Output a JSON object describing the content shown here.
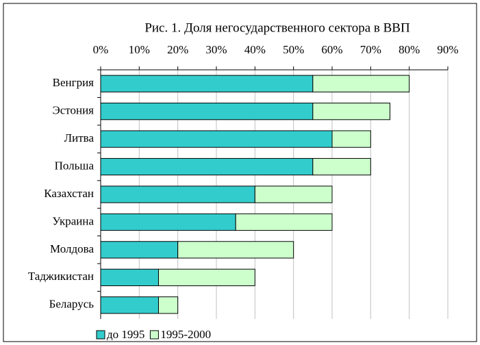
{
  "chart_data": {
    "type": "bar",
    "orientation": "horizontal",
    "stacked": true,
    "grid": true,
    "title": "Рис. 1. Доля негосударственного сектора в ВВП",
    "categories": [
      "Венгрия",
      "Эстония",
      "Литва",
      "Польша",
      "Казахстан",
      "Украина",
      "Молдова",
      "Таджикистан",
      "Беларусь"
    ],
    "series": [
      {
        "name": "до 1995",
        "color": "#33cccc",
        "values": [
          55,
          55,
          60,
          55,
          40,
          35,
          20,
          15,
          15
        ]
      },
      {
        "name": "1995-2000",
        "color": "#ccffcc",
        "values": [
          25,
          20,
          10,
          15,
          20,
          25,
          30,
          25,
          5
        ]
      }
    ],
    "xlim": [
      0,
      90
    ],
    "xticks": [
      {
        "value": 0,
        "label": "0%"
      },
      {
        "value": 10,
        "label": "10%"
      },
      {
        "value": 20,
        "label": "20%"
      },
      {
        "value": 30,
        "label": "30%"
      },
      {
        "value": 40,
        "label": "40%"
      },
      {
        "value": 50,
        "label": "50%"
      },
      {
        "value": 60,
        "label": "60%"
      },
      {
        "value": 70,
        "label": "70%"
      },
      {
        "value": 80,
        "label": "80%"
      },
      {
        "value": 90,
        "label": "90%"
      }
    ]
  }
}
